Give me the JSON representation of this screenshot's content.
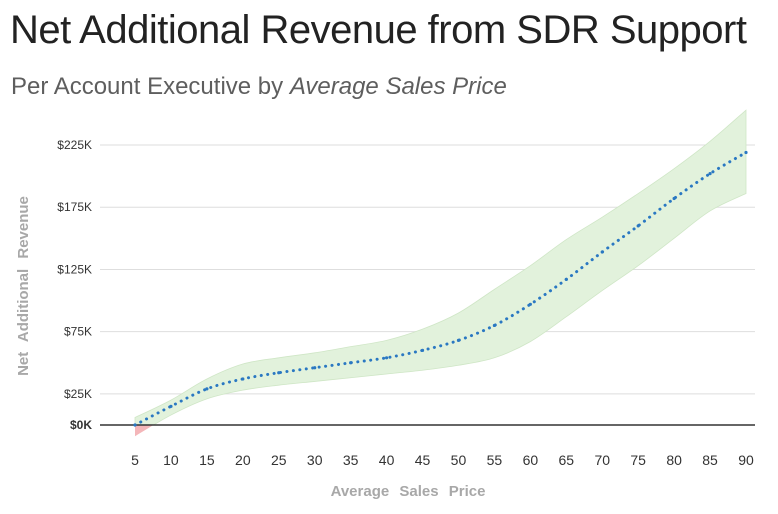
{
  "title": "Net Additional Revenue from SDR Support",
  "subtitle_prefix": "Per Account Executive by ",
  "subtitle_emphasis": "Average Sales Price",
  "chart_data": {
    "type": "line",
    "xlabel": "Average Sales Price",
    "ylabel": "Net Additional Revenue",
    "x": [
      5,
      10,
      15,
      20,
      25,
      30,
      35,
      40,
      45,
      50,
      55,
      60,
      65,
      70,
      75,
      80,
      85,
      90
    ],
    "xlim": [
      0,
      90
    ],
    "ylim": [
      0,
      225
    ],
    "yticks": [
      0,
      25,
      75,
      125,
      175,
      225
    ],
    "ytick_labels": [
      "$0K",
      "$25K",
      "$75K",
      "$125K",
      "$175K",
      "$225K"
    ],
    "grid": true,
    "series": [
      {
        "name": "Net Additional Revenue",
        "style": "dotted",
        "color": "#2a78c2",
        "values": [
          0,
          15,
          29,
          37,
          42,
          46,
          50,
          54,
          60,
          68,
          80,
          97,
          117,
          139,
          160,
          182,
          202,
          219
        ]
      }
    ],
    "band": {
      "upper": [
        6,
        20,
        37,
        49,
        54,
        58,
        63,
        68,
        77,
        90,
        109,
        128,
        149,
        167,
        186,
        206,
        228,
        253
      ],
      "lower": [
        -9,
        8,
        21,
        28,
        32,
        35,
        38,
        41,
        44,
        48,
        54,
        67,
        87,
        108,
        128,
        150,
        172,
        186
      ],
      "fill_positive": "#e2f2dc",
      "fill_negative": "#f4b6b9"
    }
  }
}
